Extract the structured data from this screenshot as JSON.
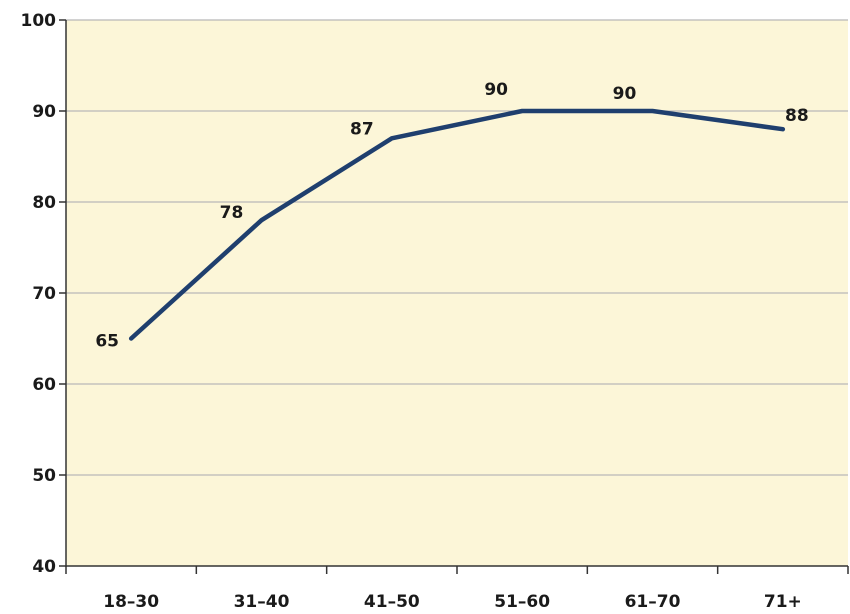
{
  "chart_data": {
    "type": "line",
    "title": "",
    "xlabel": "",
    "ylabel": "",
    "categories": [
      "18–30",
      "31–40",
      "41–50",
      "51–60",
      "61–70",
      "71+"
    ],
    "series": [
      {
        "values": [
          65,
          78,
          87,
          90,
          90,
          88
        ]
      }
    ],
    "data_labels": [
      "65",
      "78",
      "87",
      "90",
      "90",
      "88"
    ],
    "ylim": [
      40,
      100
    ],
    "yticks": [
      40,
      50,
      60,
      70,
      80,
      90,
      100
    ],
    "ytick_labels": [
      "40",
      "50",
      "60",
      "70",
      "80",
      "90",
      "100"
    ],
    "grid": true,
    "legend": "none",
    "colors": {
      "plot_background": "#fcf6d8",
      "line": "#1f3f6e",
      "gridline": "#b8b8b8",
      "axis": "#333333"
    }
  }
}
